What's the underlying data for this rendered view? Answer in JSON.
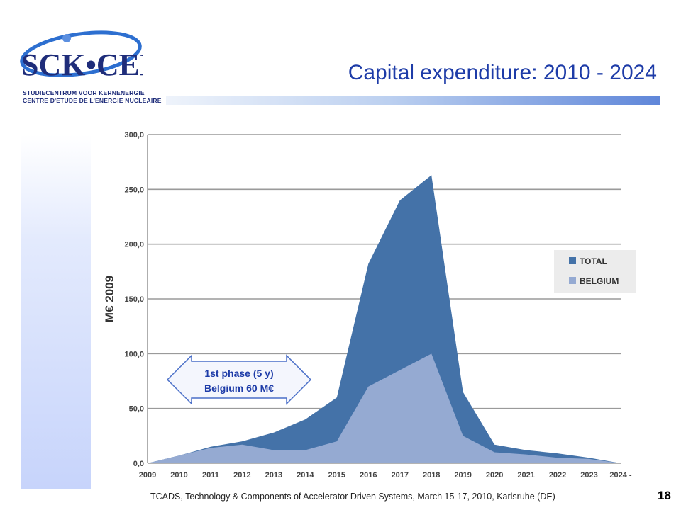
{
  "logo": {
    "main_text": "SCK•CEN",
    "line1": "STUDIECENTRUM VOOR KERNENERGIE",
    "line2": "CENTRE D'ETUDE DE L'ENERGIE NUCLEAIRE"
  },
  "slide": {
    "title": "Capital expenditure: 2010 - 2024",
    "footer": "TCADS, Technology & Components of Accelerator Driven Systems, March 15-17, 2010, Karlsruhe (DE)",
    "page_number": "18"
  },
  "annotation": {
    "line1": "1st phase (5 y)",
    "line2": "Belgium 60 M€"
  },
  "colors": {
    "total": "#4472a8",
    "belgium": "#95aad2",
    "title": "#1e3ca8"
  },
  "chart_data": {
    "type": "area",
    "ylabel": "M€ 2009",
    "xlabel": "",
    "title": "",
    "ylim": [
      0,
      300
    ],
    "grid": true,
    "legend_position": "right",
    "y_ticks": [
      "0,0",
      "50,0",
      "100,0",
      "150,0",
      "200,0",
      "250,0",
      "300,0"
    ],
    "categories": [
      "2009",
      "2010",
      "2011",
      "2012",
      "2013",
      "2014",
      "2015",
      "2016",
      "2017",
      "2018",
      "2019",
      "2020",
      "2021",
      "2022",
      "2023",
      "2024 -"
    ],
    "series": [
      {
        "name": "TOTAL",
        "values": [
          0,
          7,
          15,
          20,
          28,
          40,
          60,
          182,
          240,
          263,
          65,
          17,
          12,
          9,
          5,
          0
        ]
      },
      {
        "name": "BELGIUM",
        "values": [
          0,
          7,
          14,
          17,
          12,
          12,
          20,
          70,
          85,
          100,
          25,
          10,
          8,
          5,
          4,
          0
        ]
      }
    ]
  }
}
